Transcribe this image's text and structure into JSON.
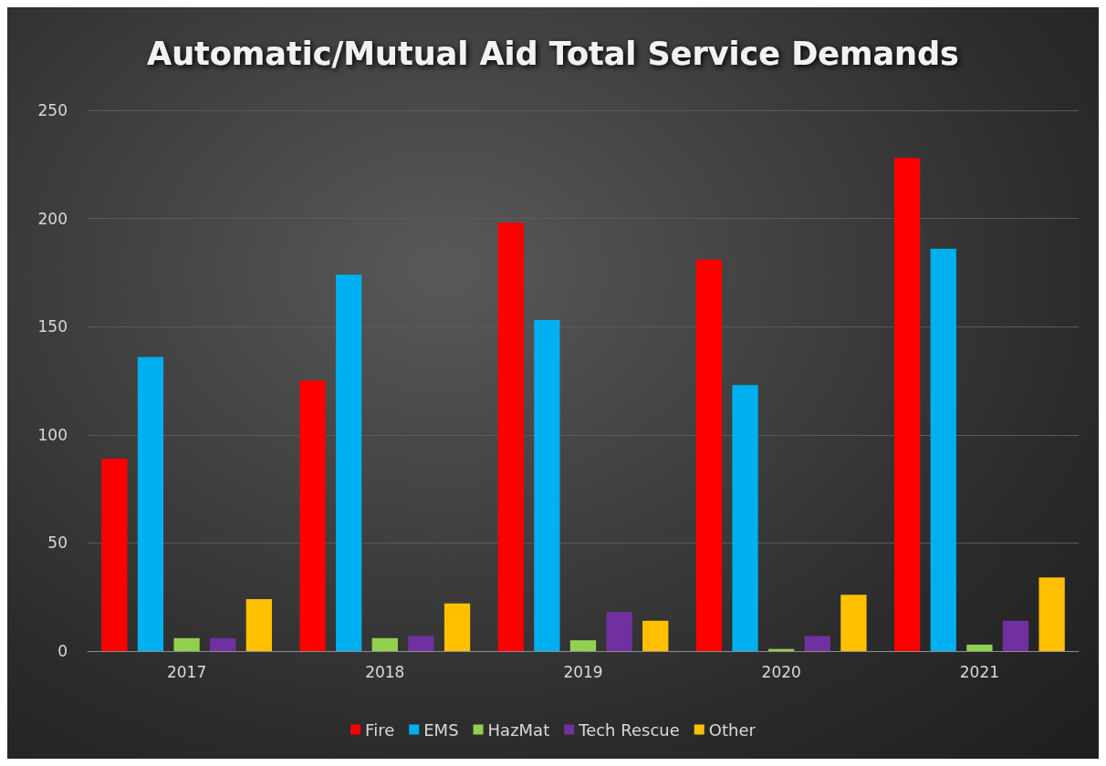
{
  "chart_data": {
    "type": "bar",
    "title": "Automatic/Mutual Aid Total Service Demands",
    "categories": [
      "2017",
      "2018",
      "2019",
      "2020",
      "2021"
    ],
    "series": [
      {
        "name": "Fire",
        "color": "#ff0000",
        "values": [
          89,
          125,
          198,
          181,
          228
        ]
      },
      {
        "name": "EMS",
        "color": "#00b0f0",
        "values": [
          136,
          174,
          153,
          123,
          186
        ]
      },
      {
        "name": "HazMat",
        "color": "#92d050",
        "values": [
          6,
          6,
          5,
          1,
          3
        ]
      },
      {
        "name": "Tech Rescue",
        "color": "#7030a0",
        "values": [
          6,
          7,
          18,
          7,
          14
        ]
      },
      {
        "name": "Other",
        "color": "#ffc000",
        "values": [
          24,
          22,
          14,
          26,
          34
        ]
      }
    ],
    "ylim": [
      0,
      250
    ],
    "yticks": [
      0,
      50,
      100,
      150,
      200,
      250
    ],
    "grid": "y",
    "legend": "bottom"
  }
}
